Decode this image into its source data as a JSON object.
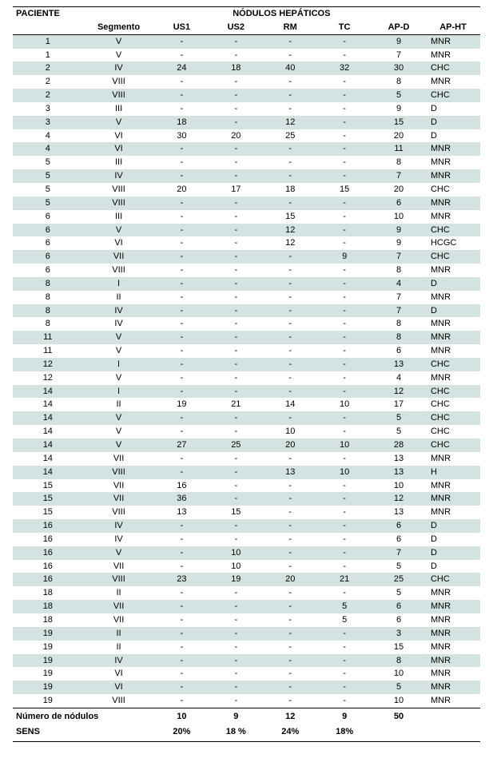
{
  "header": {
    "paciente": "PACIENTE",
    "group": "NÓDULOS HEPÁTICOS",
    "segmento": "Segmento",
    "us1": "US1",
    "us2": "US2",
    "rm": "RM",
    "tc": "TC",
    "apd": "AP-D",
    "apht": "AP-HT"
  },
  "rows": [
    {
      "pac": "1",
      "seg": "V",
      "us1": "-",
      "us2": "-",
      "rm": "-",
      "tc": "-",
      "apd": "9",
      "apht": "MNR"
    },
    {
      "pac": "1",
      "seg": "V",
      "us1": "-",
      "us2": "-",
      "rm": "-",
      "tc": "-",
      "apd": "7",
      "apht": "MNR"
    },
    {
      "pac": "2",
      "seg": "IV",
      "us1": "24",
      "us2": "18",
      "rm": "40",
      "tc": "32",
      "apd": "30",
      "apht": "CHC"
    },
    {
      "pac": "2",
      "seg": "VIII",
      "us1": "-",
      "us2": "-",
      "rm": "-",
      "tc": "-",
      "apd": "8",
      "apht": "MNR"
    },
    {
      "pac": "2",
      "seg": "VIII",
      "us1": "-",
      "us2": "-",
      "rm": "-",
      "tc": "-",
      "apd": "5",
      "apht": "CHC"
    },
    {
      "pac": "3",
      "seg": "III",
      "us1": "-",
      "us2": "-",
      "rm": "-",
      "tc": "-",
      "apd": "9",
      "apht": "D"
    },
    {
      "pac": "3",
      "seg": "V",
      "us1": "18",
      "us2": "-",
      "rm": "12",
      "tc": "-",
      "apd": "15",
      "apht": "D"
    },
    {
      "pac": "4",
      "seg": "VI",
      "us1": "30",
      "us2": "20",
      "rm": "25",
      "tc": "-",
      "apd": "20",
      "apht": "D"
    },
    {
      "pac": "4",
      "seg": "VI",
      "us1": "-",
      "us2": "-",
      "rm": "-",
      "tc": "-",
      "apd": "11",
      "apht": "MNR"
    },
    {
      "pac": "5",
      "seg": "III",
      "us1": "-",
      "us2": "-",
      "rm": "-",
      "tc": "-",
      "apd": "8",
      "apht": "MNR"
    },
    {
      "pac": "5",
      "seg": "IV",
      "us1": "-",
      "us2": "-",
      "rm": "-",
      "tc": "-",
      "apd": "7",
      "apht": "MNR"
    },
    {
      "pac": "5",
      "seg": "VIII",
      "us1": "20",
      "us2": "17",
      "rm": "18",
      "tc": "15",
      "apd": "20",
      "apht": "CHC"
    },
    {
      "pac": "5",
      "seg": "VIII",
      "us1": "-",
      "us2": "-",
      "rm": "-",
      "tc": "-",
      "apd": "6",
      "apht": "MNR"
    },
    {
      "pac": "6",
      "seg": "III",
      "us1": "-",
      "us2": "-",
      "rm": "15",
      "tc": "-",
      "apd": "10",
      "apht": "MNR"
    },
    {
      "pac": "6",
      "seg": "V",
      "us1": "-",
      "us2": "-",
      "rm": "12",
      "tc": "-",
      "apd": "9",
      "apht": "CHC"
    },
    {
      "pac": "6",
      "seg": "VI",
      "us1": "-",
      "us2": "-",
      "rm": "12",
      "tc": "-",
      "apd": "9",
      "apht": "HCGC"
    },
    {
      "pac": "6",
      "seg": "VII",
      "us1": "-",
      "us2": "-",
      "rm": "-",
      "tc": "9",
      "apd": "7",
      "apht": "CHC"
    },
    {
      "pac": "6",
      "seg": "VIII",
      "us1": "-",
      "us2": "-",
      "rm": "-",
      "tc": "-",
      "apd": "8",
      "apht": "MNR"
    },
    {
      "pac": "8",
      "seg": "I",
      "us1": "-",
      "us2": "-",
      "rm": "-",
      "tc": "-",
      "apd": "4",
      "apht": "D"
    },
    {
      "pac": "8",
      "seg": "II",
      "us1": "-",
      "us2": "-",
      "rm": "-",
      "tc": "-",
      "apd": "7",
      "apht": "MNR"
    },
    {
      "pac": "8",
      "seg": "IV",
      "us1": "-",
      "us2": "-",
      "rm": "-",
      "tc": "-",
      "apd": "7",
      "apht": "D"
    },
    {
      "pac": "8",
      "seg": "IV",
      "us1": "-",
      "us2": "-",
      "rm": "-",
      "tc": "-",
      "apd": "8",
      "apht": "MNR"
    },
    {
      "pac": "11",
      "seg": "V",
      "us1": "-",
      "us2": "-",
      "rm": "-",
      "tc": "-",
      "apd": "8",
      "apht": "MNR"
    },
    {
      "pac": "11",
      "seg": "V",
      "us1": "-",
      "us2": "-",
      "rm": "-",
      "tc": "-",
      "apd": "6",
      "apht": "MNR"
    },
    {
      "pac": "12",
      "seg": "I",
      "us1": "-",
      "us2": "-",
      "rm": "-",
      "tc": "-",
      "apd": "13",
      "apht": "CHC"
    },
    {
      "pac": "12",
      "seg": "V",
      "us1": "-",
      "us2": "-",
      "rm": "-",
      "tc": "-",
      "apd": "4",
      "apht": "MNR"
    },
    {
      "pac": "14",
      "seg": "I",
      "us1": "-",
      "us2": "-",
      "rm": "-",
      "tc": "-",
      "apd": "12",
      "apht": "CHC"
    },
    {
      "pac": "14",
      "seg": "II",
      "us1": "19",
      "us2": "21",
      "rm": "14",
      "tc": "10",
      "apd": "17",
      "apht": "CHC"
    },
    {
      "pac": "14",
      "seg": "V",
      "us1": "-",
      "us2": "-",
      "rm": "-",
      "tc": "-",
      "apd": "5",
      "apht": "CHC"
    },
    {
      "pac": "14",
      "seg": "V",
      "us1": "-",
      "us2": "-",
      "rm": "10",
      "tc": "-",
      "apd": "5",
      "apht": "CHC"
    },
    {
      "pac": "14",
      "seg": "V",
      "us1": "27",
      "us2": "25",
      "rm": "20",
      "tc": "10",
      "apd": "28",
      "apht": "CHC"
    },
    {
      "pac": "14",
      "seg": "VII",
      "us1": "-",
      "us2": "-",
      "rm": "-",
      "tc": "-",
      "apd": "13",
      "apht": "MNR"
    },
    {
      "pac": "14",
      "seg": "VIII",
      "us1": "-",
      "us2": "-",
      "rm": "13",
      "tc": "10",
      "apd": "13",
      "apht": "H"
    },
    {
      "pac": "15",
      "seg": "VII",
      "us1": "16",
      "us2": "-",
      "rm": "-",
      "tc": "-",
      "apd": "10",
      "apht": "MNR"
    },
    {
      "pac": "15",
      "seg": "VII",
      "us1": "36",
      "us2": "-",
      "rm": "-",
      "tc": "-",
      "apd": "12",
      "apht": "MNR"
    },
    {
      "pac": "15",
      "seg": "VIII",
      "us1": "13",
      "us2": "15",
      "rm": "-",
      "tc": "-",
      "apd": "13",
      "apht": "MNR"
    },
    {
      "pac": "16",
      "seg": "IV",
      "us1": "-",
      "us2": "-",
      "rm": "-",
      "tc": "-",
      "apd": "6",
      "apht": "D"
    },
    {
      "pac": "16",
      "seg": "IV",
      "us1": "-",
      "us2": "-",
      "rm": "-",
      "tc": "-",
      "apd": "6",
      "apht": "D"
    },
    {
      "pac": "16",
      "seg": "V",
      "us1": "-",
      "us2": "10",
      "rm": "-",
      "tc": "-",
      "apd": "7",
      "apht": "D"
    },
    {
      "pac": "16",
      "seg": "VII",
      "us1": "-",
      "us2": "10",
      "rm": "-",
      "tc": "-",
      "apd": "5",
      "apht": "D"
    },
    {
      "pac": "16",
      "seg": "VIII",
      "us1": "23",
      "us2": "19",
      "rm": "20",
      "tc": "21",
      "apd": "25",
      "apht": "CHC"
    },
    {
      "pac": "18",
      "seg": "II",
      "us1": "-",
      "us2": "-",
      "rm": "-",
      "tc": "-",
      "apd": "5",
      "apht": "MNR"
    },
    {
      "pac": "18",
      "seg": "VII",
      "us1": "-",
      "us2": "-",
      "rm": "-",
      "tc": "5",
      "apd": "6",
      "apht": "MNR"
    },
    {
      "pac": "18",
      "seg": "VII",
      "us1": "-",
      "us2": "-",
      "rm": "-",
      "tc": "5",
      "apd": "6",
      "apht": "MNR"
    },
    {
      "pac": "19",
      "seg": "II",
      "us1": "-",
      "us2": "-",
      "rm": "-",
      "tc": "-",
      "apd": "3",
      "apht": "MNR"
    },
    {
      "pac": "19",
      "seg": "II",
      "us1": "-",
      "us2": "-",
      "rm": "-",
      "tc": "-",
      "apd": "15",
      "apht": "MNR"
    },
    {
      "pac": "19",
      "seg": "IV",
      "us1": "-",
      "us2": "-",
      "rm": "-",
      "tc": "-",
      "apd": "8",
      "apht": "MNR"
    },
    {
      "pac": "19",
      "seg": "VI",
      "us1": "-",
      "us2": "-",
      "rm": "-",
      "tc": "-",
      "apd": "10",
      "apht": "MNR"
    },
    {
      "pac": "19",
      "seg": "VI",
      "us1": "-",
      "us2": "-",
      "rm": "-",
      "tc": "-",
      "apd": "5",
      "apht": "MNR"
    },
    {
      "pac": "19",
      "seg": "VIII",
      "us1": "-",
      "us2": "-",
      "rm": "-",
      "tc": "-",
      "apd": "10",
      "apht": "MNR"
    }
  ],
  "footer": {
    "row1": {
      "label": "Número de nódulos",
      "us1": "10",
      "us2": "9",
      "rm": "12",
      "tc": "9",
      "apd": "50",
      "apht": ""
    },
    "row2": {
      "label": "SENS",
      "us1": "20%",
      "us2": "18 %",
      "rm": "24%",
      "tc": "18%",
      "apd": "",
      "apht": ""
    }
  },
  "style": {
    "stripe_color": "#d4e2e2",
    "plain_color": "#ffffff",
    "text_color": "#000000",
    "font_size_pt": 11
  }
}
